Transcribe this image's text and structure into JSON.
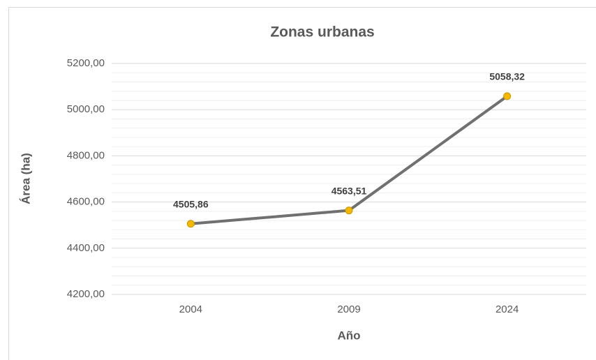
{
  "chart_data": {
    "type": "line",
    "title": "Zonas urbanas",
    "x_label": "Año",
    "y_label": "Área (ha)",
    "categories": [
      "2004",
      "2009",
      "2024"
    ],
    "series": [
      {
        "name": "Zonas urbanas",
        "color": "#707070",
        "marker_color": "#f5b800",
        "values": [
          4505.86,
          4563.51,
          5058.32
        ],
        "value_labels": [
          "4505,86",
          "4563,51",
          "5058,32"
        ]
      }
    ],
    "ylim": [
      4200,
      5200
    ],
    "yticks": [
      {
        "value": 4200,
        "label": "4200,00"
      },
      {
        "value": 4400,
        "label": "4400,00"
      },
      {
        "value": 4600,
        "label": "4600,00"
      },
      {
        "value": 4800,
        "label": "4800,00"
      },
      {
        "value": 5000,
        "label": "5000,00"
      },
      {
        "value": 5200,
        "label": "5200,00"
      }
    ],
    "grid": true,
    "minor_grid_divisions": 5
  }
}
